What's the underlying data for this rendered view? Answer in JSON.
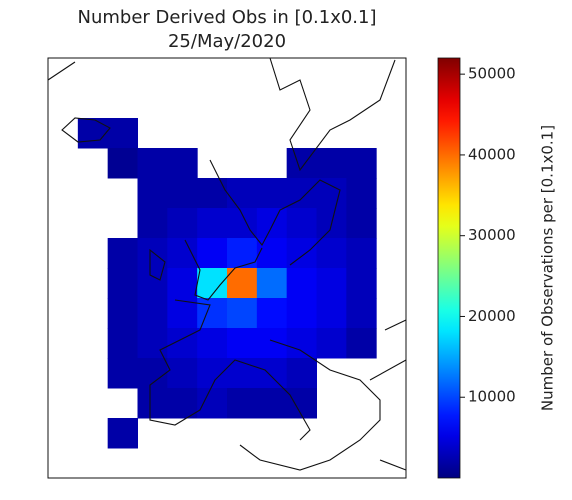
{
  "chart_data": {
    "type": "heatmap",
    "title": "Number Derived Obs in [0.1x0.1]",
    "subtitle": "25/May/2020",
    "values": [
      [
        null,
        null,
        null,
        null,
        null,
        null,
        null,
        null,
        null,
        null,
        null,
        null
      ],
      [
        null,
        null,
        null,
        null,
        null,
        null,
        null,
        null,
        null,
        null,
        null,
        null
      ],
      [
        null,
        2000,
        2000,
        null,
        null,
        null,
        null,
        null,
        null,
        null,
        null,
        null
      ],
      [
        null,
        null,
        1000,
        2000,
        2000,
        null,
        null,
        null,
        2000,
        2000,
        2000,
        null
      ],
      [
        null,
        null,
        null,
        2000,
        2000,
        2000,
        3000,
        3000,
        3000,
        3000,
        2000,
        null
      ],
      [
        null,
        null,
        null,
        2000,
        3000,
        4000,
        4000,
        5000,
        4000,
        3000,
        2000,
        null
      ],
      [
        null,
        null,
        2000,
        3000,
        4000,
        6000,
        8000,
        6000,
        5000,
        4000,
        3000,
        null
      ],
      [
        null,
        null,
        2000,
        3000,
        5000,
        18000,
        40000,
        12000,
        6000,
        5000,
        3000,
        null
      ],
      [
        null,
        null,
        2000,
        3000,
        5000,
        9000,
        10000,
        7000,
        6000,
        5000,
        3000,
        null
      ],
      [
        null,
        null,
        2000,
        3000,
        4000,
        5000,
        6000,
        6000,
        5000,
        4000,
        2000,
        null
      ],
      [
        null,
        null,
        2000,
        2000,
        3000,
        4000,
        4000,
        4000,
        3000,
        null,
        null,
        null
      ],
      [
        null,
        null,
        null,
        2000,
        2000,
        3000,
        2000,
        2000,
        2000,
        null,
        null,
        null
      ],
      [
        null,
        null,
        2000,
        null,
        null,
        null,
        null,
        null,
        null,
        null,
        null,
        null
      ],
      [
        null,
        null,
        null,
        null,
        null,
        null,
        null,
        null,
        null,
        null,
        null,
        null
      ]
    ],
    "colorbar": {
      "label": "Number of Observations per [0.1x0.1]",
      "lim": [
        0,
        52000
      ],
      "ticks": [
        10000,
        20000,
        30000,
        40000,
        50000
      ]
    }
  }
}
